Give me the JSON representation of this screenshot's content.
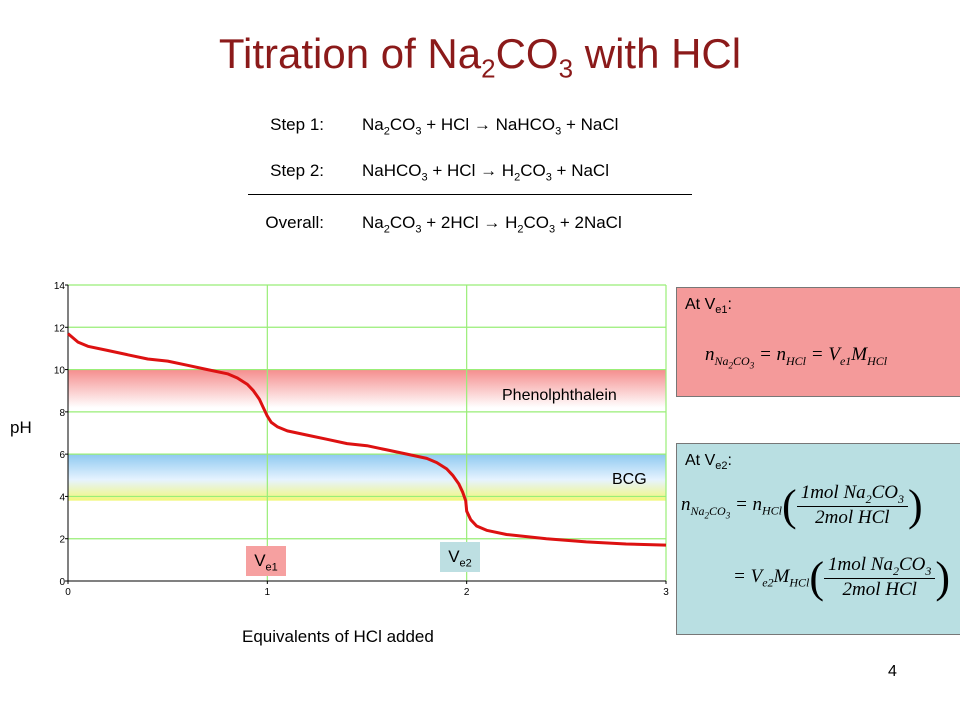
{
  "title": {
    "text": "Titration of Na",
    "sub1": "2",
    "mid": "CO",
    "sub2": "3",
    "tail": " with HCl"
  },
  "equations": {
    "step1": {
      "label": "Step 1:",
      "a": "Na",
      "as": "2",
      "b": "CO",
      "bs": "3",
      "c": " + HCl  →  NaHCO",
      "cs": "3",
      "d": "  + NaCl"
    },
    "step2": {
      "label": "Step 2:",
      "a": "NaHCO",
      "as": "3",
      "b": " + HCl  →  H",
      "bs": "2",
      "c": "CO",
      "cs": "3",
      "d": " + NaCl"
    },
    "overall": {
      "label": "Overall:",
      "a": "Na",
      "as": "2",
      "b": "CO",
      "bs": "3",
      "c": " + 2HCl  →  H",
      "cs": "2",
      "d": "CO",
      "ds": "3",
      "e": " + 2NaCl"
    }
  },
  "chart_labels": {
    "ylabel": "pH",
    "xlabel": "Equivalents of HCl added"
  },
  "bands": {
    "phenolphthalein": "Phenolphthalein",
    "bcg": "BCG"
  },
  "markers": {
    "ve1": {
      "v": "V",
      "sub": "e1"
    },
    "ve2": {
      "v": "V",
      "sub": "e2"
    }
  },
  "panels": {
    "at_ve1": {
      "title": "At V",
      "sub": "e1",
      "colon": ":"
    },
    "at_ve2": {
      "title": "At V",
      "sub": "e2",
      "colon": ":"
    }
  },
  "page_number": "4",
  "colors": {
    "title": "#8b1a1a",
    "curve": "#dd1111",
    "grid": "#99ee77",
    "panel1": "#f49a9a",
    "panel2": "#b9dfe2",
    "marker1": "#f6a0a0",
    "marker2": "#bddfe2"
  },
  "chart_data": {
    "type": "line",
    "xlim": [
      0,
      3
    ],
    "ylim": [
      0,
      14
    ],
    "xticks": [
      "0",
      "1",
      "2",
      "3"
    ],
    "yticks": [
      "0",
      "2",
      "4",
      "6",
      "8",
      "10",
      "12",
      "14"
    ],
    "grid": true,
    "series": [
      {
        "x": [
          0,
          0.05,
          0.1,
          0.2,
          0.3,
          0.4,
          0.5,
          0.6,
          0.7,
          0.8,
          0.85,
          0.9,
          0.93,
          0.96,
          0.98,
          1.0,
          1.02,
          1.05,
          1.1,
          1.2,
          1.3,
          1.4,
          1.5,
          1.6,
          1.7,
          1.8,
          1.85,
          1.9,
          1.93,
          1.96,
          1.98,
          1.995,
          2.0,
          2.02,
          2.05,
          2.1,
          2.2,
          2.4,
          2.6,
          2.8,
          3.0
        ],
        "y": [
          11.7,
          11.3,
          11.1,
          10.9,
          10.7,
          10.5,
          10.4,
          10.2,
          10.0,
          9.8,
          9.6,
          9.3,
          9.0,
          8.6,
          8.2,
          7.8,
          7.5,
          7.3,
          7.1,
          6.9,
          6.7,
          6.5,
          6.4,
          6.2,
          6.0,
          5.8,
          5.6,
          5.3,
          5.0,
          4.6,
          4.2,
          3.8,
          3.3,
          2.9,
          2.6,
          2.4,
          2.2,
          2.0,
          1.85,
          1.75,
          1.7
        ]
      }
    ],
    "annotations": [
      {
        "text": "Phenolphthalein",
        "y_range": [
          8.2,
          10
        ]
      },
      {
        "text": "BCG",
        "y_range": [
          3.8,
          6
        ]
      }
    ]
  }
}
